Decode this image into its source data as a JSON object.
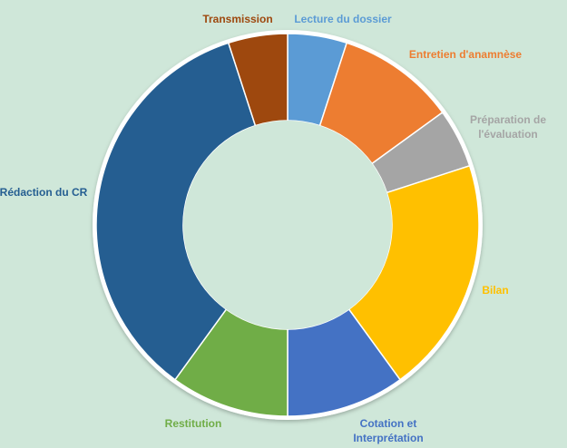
{
  "chart_data": {
    "type": "pie",
    "subtype": "donut",
    "categories": [
      "Lecture du dossier",
      "Entretien d'anamnèse",
      "Préparation de l'évaluation",
      "Bilan",
      "Cotation et Interprétation",
      "Restitution",
      "Rédaction du CR",
      "Transmission"
    ],
    "values": [
      5,
      10,
      5,
      20,
      10,
      10,
      35,
      5
    ],
    "colors": [
      "#5b9bd5",
      "#ed7d31",
      "#a5a5a5",
      "#ffc000",
      "#4472c4",
      "#70ad47",
      "#255e91",
      "#9e480e"
    ],
    "label_lines": [
      [
        "Lecture du dossier"
      ],
      [
        "Entretien d'anamnèse"
      ],
      [
        "Préparation de",
        "l'évaluation"
      ],
      [
        "Bilan"
      ],
      [
        "Cotation et",
        "Interprétation"
      ],
      [
        "Restitution"
      ],
      [
        "Rédaction du CR"
      ],
      [
        "Transmission"
      ]
    ],
    "legend": "none",
    "start_angle_deg": 0,
    "direction": "clockwise"
  }
}
